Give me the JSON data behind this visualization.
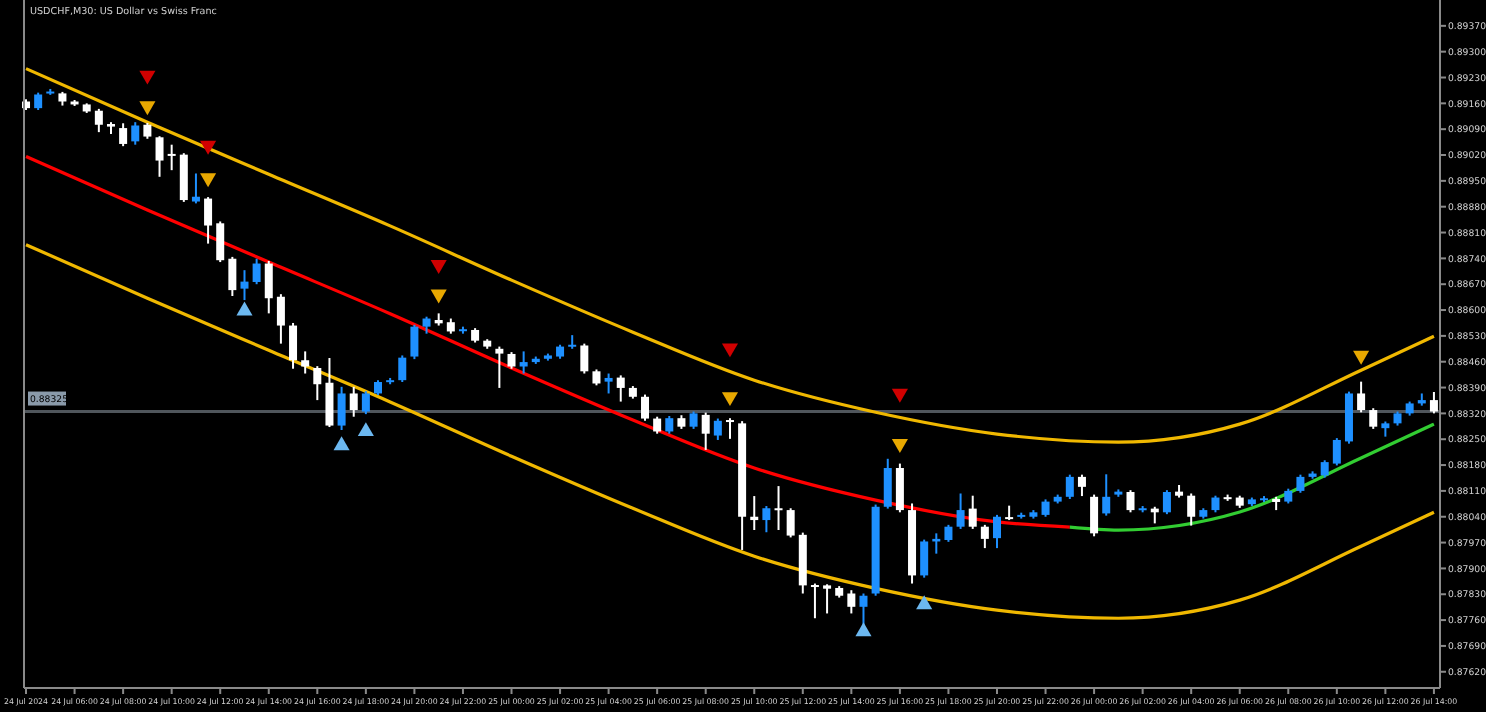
{
  "chart_data": {
    "type": "candlestick",
    "title": "USDCHF,M30:  US Dollar vs Swiss Franc",
    "x": [
      "2024-07-24T04:00",
      "2024-07-24T04:30",
      "2024-07-24T05:00",
      "2024-07-24T05:30",
      "2024-07-24T06:00",
      "2024-07-24T06:30",
      "2024-07-24T07:00",
      "2024-07-24T07:30",
      "2024-07-24T08:00",
      "2024-07-24T08:30",
      "2024-07-24T09:00",
      "2024-07-24T09:30",
      "2024-07-24T10:00",
      "2024-07-24T10:30",
      "2024-07-24T11:00",
      "2024-07-24T11:30",
      "2024-07-24T12:00",
      "2024-07-24T12:30",
      "2024-07-24T13:00",
      "2024-07-24T13:30",
      "2024-07-24T14:00",
      "2024-07-24T14:30",
      "2024-07-24T15:00",
      "2024-07-24T15:30",
      "2024-07-24T16:00",
      "2024-07-24T16:30",
      "2024-07-24T17:00",
      "2024-07-24T17:30",
      "2024-07-24T18:00",
      "2024-07-24T18:30",
      "2024-07-24T19:00",
      "2024-07-24T19:30",
      "2024-07-24T20:00",
      "2024-07-24T20:30",
      "2024-07-24T21:00",
      "2024-07-24T21:30",
      "2024-07-24T22:00",
      "2024-07-24T22:30",
      "2024-07-24T23:00",
      "2024-07-24T23:30",
      "2024-07-25T00:00",
      "2024-07-25T00:30",
      "2024-07-25T01:00",
      "2024-07-25T01:30",
      "2024-07-25T02:00",
      "2024-07-25T02:30",
      "2024-07-25T03:00",
      "2024-07-25T03:30",
      "2024-07-25T04:00",
      "2024-07-25T04:30",
      "2024-07-25T05:00",
      "2024-07-25T05:30",
      "2024-07-25T06:00",
      "2024-07-25T06:30",
      "2024-07-25T07:00",
      "2024-07-25T07:30",
      "2024-07-25T08:00",
      "2024-07-25T08:30",
      "2024-07-25T09:00",
      "2024-07-25T09:30",
      "2024-07-25T10:00",
      "2024-07-25T10:30",
      "2024-07-25T11:00",
      "2024-07-25T11:30",
      "2024-07-25T12:00",
      "2024-07-25T12:30",
      "2024-07-25T13:00",
      "2024-07-25T13:30",
      "2024-07-25T14:00",
      "2024-07-25T14:30",
      "2024-07-25T15:00",
      "2024-07-25T15:30",
      "2024-07-25T16:00",
      "2024-07-25T16:30",
      "2024-07-25T17:00",
      "2024-07-25T17:30",
      "2024-07-25T18:00",
      "2024-07-25T18:30",
      "2024-07-25T19:00",
      "2024-07-25T19:30",
      "2024-07-25T20:00",
      "2024-07-25T20:30",
      "2024-07-25T21:00",
      "2024-07-25T21:30",
      "2024-07-25T22:00",
      "2024-07-25T22:30",
      "2024-07-25T23:00",
      "2024-07-25T23:30",
      "2024-07-26T00:00",
      "2024-07-26T00:30",
      "2024-07-26T01:00",
      "2024-07-26T01:30",
      "2024-07-26T02:00",
      "2024-07-26T02:30",
      "2024-07-26T03:00",
      "2024-07-26T03:30",
      "2024-07-26T04:00",
      "2024-07-26T04:30",
      "2024-07-26T05:00",
      "2024-07-26T05:30",
      "2024-07-26T06:00",
      "2024-07-26T06:30",
      "2024-07-26T07:00",
      "2024-07-26T07:30",
      "2024-07-26T08:00",
      "2024-07-26T08:30",
      "2024-07-26T09:00",
      "2024-07-26T09:30",
      "2024-07-26T10:00",
      "2024-07-26T10:30",
      "2024-07-26T11:00",
      "2024-07-26T11:30",
      "2024-07-26T12:00",
      "2024-07-26T12:30",
      "2024-07-26T13:00",
      "2024-07-26T13:30",
      "2024-07-26T14:00"
    ],
    "ohlc": [
      [
        0.89165,
        0.89171,
        0.89142,
        0.89147
      ],
      [
        0.89147,
        0.89189,
        0.89142,
        0.89184
      ],
      [
        0.89188,
        0.89199,
        0.89183,
        0.89192
      ],
      [
        0.89187,
        0.89191,
        0.89154,
        0.89165
      ],
      [
        0.89165,
        0.89169,
        0.89153,
        0.89157
      ],
      [
        0.89157,
        0.8916,
        0.89134,
        0.89138
      ],
      [
        0.8914,
        0.89145,
        0.89082,
        0.89102
      ],
      [
        0.89104,
        0.89109,
        0.89077,
        0.89097
      ],
      [
        0.89093,
        0.89106,
        0.89044,
        0.8905
      ],
      [
        0.89057,
        0.89109,
        0.89048,
        0.891
      ],
      [
        0.89102,
        0.89107,
        0.89064,
        0.8907
      ],
      [
        0.89068,
        0.89071,
        0.88961,
        0.89005
      ],
      [
        0.89023,
        0.89048,
        0.88979,
        0.89018
      ],
      [
        0.89021,
        0.89025,
        0.88893,
        0.88898
      ],
      [
        0.88894,
        0.8897,
        0.88889,
        0.88907
      ],
      [
        0.88902,
        0.88906,
        0.8878,
        0.88829
      ],
      [
        0.88835,
        0.8884,
        0.8873,
        0.88735
      ],
      [
        0.88739,
        0.88744,
        0.88638,
        0.88654
      ],
      [
        0.88658,
        0.88708,
        0.88627,
        0.88677
      ],
      [
        0.88676,
        0.88739,
        0.8867,
        0.88726
      ],
      [
        0.88726,
        0.88733,
        0.88591,
        0.88632
      ],
      [
        0.88636,
        0.88643,
        0.88509,
        0.88558
      ],
      [
        0.88558,
        0.88565,
        0.88441,
        0.88464
      ],
      [
        0.88464,
        0.88488,
        0.88428,
        0.88447
      ],
      [
        0.88443,
        0.88448,
        0.88356,
        0.88399
      ],
      [
        0.88403,
        0.8847,
        0.88283,
        0.88287
      ],
      [
        0.88287,
        0.88392,
        0.88275,
        0.88374
      ],
      [
        0.88374,
        0.88392,
        0.88311,
        0.88329
      ],
      [
        0.88325,
        0.8838,
        0.88318,
        0.88374
      ],
      [
        0.88374,
        0.8841,
        0.8837,
        0.88405
      ],
      [
        0.88405,
        0.88416,
        0.88399,
        0.8841
      ],
      [
        0.8841,
        0.88477,
        0.88405,
        0.88471
      ],
      [
        0.88474,
        0.8856,
        0.88467,
        0.88555
      ],
      [
        0.88555,
        0.88582,
        0.88536,
        0.88577
      ],
      [
        0.88573,
        0.88591,
        0.88558,
        0.88564
      ],
      [
        0.88567,
        0.88577,
        0.88536,
        0.88542
      ],
      [
        0.88543,
        0.88555,
        0.88536,
        0.88548
      ],
      [
        0.88546,
        0.88551,
        0.88512,
        0.88517
      ],
      [
        0.88517,
        0.88521,
        0.88495,
        0.88501
      ],
      [
        0.88495,
        0.88501,
        0.88389,
        0.88482
      ],
      [
        0.88481,
        0.88486,
        0.88441,
        0.88447
      ],
      [
        0.88447,
        0.88488,
        0.88428,
        0.88459
      ],
      [
        0.88459,
        0.88474,
        0.88454,
        0.88468
      ],
      [
        0.88468,
        0.88482,
        0.88463,
        0.88477
      ],
      [
        0.88474,
        0.88506,
        0.88468,
        0.88501
      ],
      [
        0.88501,
        0.88532,
        0.88495,
        0.88506
      ],
      [
        0.88504,
        0.88509,
        0.88428,
        0.88434
      ],
      [
        0.88434,
        0.88439,
        0.88396,
        0.88401
      ],
      [
        0.88406,
        0.88428,
        0.88374,
        0.88416
      ],
      [
        0.88417,
        0.88423,
        0.88352,
        0.88389
      ],
      [
        0.88389,
        0.88394,
        0.8836,
        0.88365
      ],
      [
        0.88365,
        0.88371,
        0.883,
        0.88306
      ],
      [
        0.88306,
        0.88311,
        0.88265,
        0.88271
      ],
      [
        0.88271,
        0.88313,
        0.88265,
        0.88307
      ],
      [
        0.88307,
        0.88315,
        0.88278,
        0.88284
      ],
      [
        0.88284,
        0.88325,
        0.88278,
        0.8832
      ],
      [
        0.88316,
        0.88322,
        0.88221,
        0.88265
      ],
      [
        0.8826,
        0.88306,
        0.88248,
        0.883
      ],
      [
        0.88302,
        0.88307,
        0.88251,
        0.88297
      ],
      [
        0.88293,
        0.88299,
        0.8795,
        0.8804
      ],
      [
        0.8804,
        0.88096,
        0.88004,
        0.88031
      ],
      [
        0.88031,
        0.88069,
        0.87998,
        0.88063
      ],
      [
        0.88063,
        0.88123,
        0.88004,
        0.88059
      ],
      [
        0.88058,
        0.88063,
        0.87984,
        0.87989
      ],
      [
        0.87991,
        0.87997,
        0.87832,
        0.87854
      ],
      [
        0.87855,
        0.87859,
        0.87765,
        0.87852
      ],
      [
        0.87854,
        0.87857,
        0.87778,
        0.87845
      ],
      [
        0.87847,
        0.87852,
        0.87821,
        0.87826
      ],
      [
        0.87832,
        0.87841,
        0.87778,
        0.87796
      ],
      [
        0.87796,
        0.87832,
        0.87744,
        0.87826
      ],
      [
        0.87832,
        0.88073,
        0.87826,
        0.88067
      ],
      [
        0.88067,
        0.88197,
        0.88062,
        0.88172
      ],
      [
        0.88172,
        0.88184,
        0.88052,
        0.88058
      ],
      [
        0.88058,
        0.88076,
        0.87859,
        0.87881
      ],
      [
        0.87881,
        0.87978,
        0.87875,
        0.87973
      ],
      [
        0.87973,
        0.87995,
        0.8794,
        0.8798
      ],
      [
        0.87977,
        0.88018,
        0.87972,
        0.88013
      ],
      [
        0.88013,
        0.88103,
        0.88007,
        0.88058
      ],
      [
        0.88062,
        0.88097,
        0.88007,
        0.88013
      ],
      [
        0.88013,
        0.88018,
        0.87955,
        0.8798
      ],
      [
        0.87982,
        0.88045,
        0.87955,
        0.8804
      ],
      [
        0.88039,
        0.8807,
        0.88031,
        0.88036
      ],
      [
        0.8804,
        0.88051,
        0.88035,
        0.88045
      ],
      [
        0.8804,
        0.88058,
        0.88035,
        0.88052
      ],
      [
        0.88045,
        0.88087,
        0.8804,
        0.88081
      ],
      [
        0.88081,
        0.881,
        0.88076,
        0.88094
      ],
      [
        0.88094,
        0.88154,
        0.88088,
        0.88148
      ],
      [
        0.88148,
        0.88154,
        0.88096,
        0.88121
      ],
      [
        0.88094,
        0.881,
        0.87987,
        0.87995
      ],
      [
        0.88049,
        0.88155,
        0.88043,
        0.88094
      ],
      [
        0.881,
        0.88114,
        0.88094,
        0.88108
      ],
      [
        0.88107,
        0.88112,
        0.88052,
        0.88058
      ],
      [
        0.88058,
        0.88069,
        0.88052,
        0.88063
      ],
      [
        0.88062,
        0.88067,
        0.88022,
        0.88052
      ],
      [
        0.88052,
        0.88112,
        0.88047,
        0.88107
      ],
      [
        0.88108,
        0.88126,
        0.88092,
        0.88097
      ],
      [
        0.88097,
        0.88103,
        0.88016,
        0.8804
      ],
      [
        0.8804,
        0.88063,
        0.88035,
        0.88058
      ],
      [
        0.88058,
        0.88097,
        0.88052,
        0.88092
      ],
      [
        0.88093,
        0.881,
        0.88083,
        0.8809
      ],
      [
        0.88092,
        0.88097,
        0.88064,
        0.8807
      ],
      [
        0.88074,
        0.88092,
        0.88069,
        0.88087
      ],
      [
        0.88085,
        0.88096,
        0.8808,
        0.8809
      ],
      [
        0.88088,
        0.88094,
        0.88058,
        0.8808
      ],
      [
        0.88081,
        0.88116,
        0.88076,
        0.8811
      ],
      [
        0.8811,
        0.88154,
        0.88105,
        0.88148
      ],
      [
        0.88148,
        0.88163,
        0.88143,
        0.88157
      ],
      [
        0.88152,
        0.88193,
        0.88146,
        0.88188
      ],
      [
        0.88184,
        0.88253,
        0.88179,
        0.88248
      ],
      [
        0.88244,
        0.88379,
        0.88238,
        0.88374
      ],
      [
        0.88374,
        0.88406,
        0.88323,
        0.88329
      ],
      [
        0.88329,
        0.88334,
        0.88278,
        0.88284
      ],
      [
        0.8828,
        0.88298,
        0.88257,
        0.88293
      ],
      [
        0.88293,
        0.88325,
        0.88287,
        0.8832
      ],
      [
        0.8832,
        0.88352,
        0.88314,
        0.88347
      ],
      [
        0.88347,
        0.88374,
        0.88341,
        0.88356
      ],
      [
        0.88356,
        0.88378,
        0.8832,
        0.88325
      ]
    ],
    "series": [
      {
        "type": "line",
        "color": "#f0b800",
        "x": [
          "2024-07-24T04:00",
          "2024-07-24T09:00",
          "2024-07-24T14:00",
          "2024-07-24T19:00",
          "2024-07-25T00:00",
          "2024-07-25T05:00",
          "2024-07-25T10:00",
          "2024-07-25T15:00",
          "2024-07-25T20:00",
          "2024-07-26T01:00",
          "2024-07-26T06:00",
          "2024-07-26T11:00",
          "2024-07-26T14:00"
        ],
        "values": [
          0.89254,
          0.89109,
          0.88968,
          0.88828,
          0.88681,
          0.8854,
          0.8841,
          0.88323,
          0.88264,
          0.88242,
          0.88291,
          0.88437,
          0.88529
        ]
      },
      {
        "type": "line",
        "color": "#ff0000",
        "x": [
          "2024-07-24T04:00",
          "2024-07-24T09:00",
          "2024-07-24T14:00",
          "2024-07-24T19:00",
          "2024-07-25T00:00",
          "2024-07-25T05:00",
          "2024-07-25T10:00",
          "2024-07-25T15:00",
          "2024-07-25T20:00",
          "2024-07-25T23:00"
        ],
        "values": [
          0.89016,
          0.88871,
          0.8873,
          0.8859,
          0.88443,
          0.88302,
          0.88172,
          0.88085,
          0.88026,
          0.88012
        ]
      },
      {
        "type": "line",
        "color": "#32cd32",
        "x": [
          "2024-07-25T23:00",
          "2024-07-26T01:00",
          "2024-07-26T06:00",
          "2024-07-26T11:00",
          "2024-07-26T14:00"
        ],
        "values": [
          0.88012,
          0.88004,
          0.88053,
          0.88199,
          0.88291
        ]
      },
      {
        "type": "line",
        "color": "#f0b800",
        "x": [
          "2024-07-24T04:00",
          "2024-07-24T09:00",
          "2024-07-24T14:00",
          "2024-07-24T19:00",
          "2024-07-25T00:00",
          "2024-07-25T05:00",
          "2024-07-25T10:00",
          "2024-07-25T15:00",
          "2024-07-25T20:00",
          "2024-07-26T01:00",
          "2024-07-26T06:00",
          "2024-07-26T11:00",
          "2024-07-26T14:00"
        ],
        "values": [
          0.88777,
          0.88632,
          0.88491,
          0.88351,
          0.88204,
          0.88063,
          0.87933,
          0.87846,
          0.87787,
          0.87765,
          0.87814,
          0.8796,
          0.88052
        ]
      },
      {
        "type": "scatter",
        "marker": "triangle",
        "color": "#d00000",
        "x": [
          "2024-07-24T09:00",
          "2024-07-24T11:30",
          "2024-07-24T21:00",
          "2024-07-25T09:00",
          "2024-07-25T16:00"
        ],
        "values": [
          0.89236,
          0.89046,
          0.88723,
          0.88497,
          0.88374
        ]
      },
      {
        "type": "scatter",
        "marker": "triangle",
        "color": "#e8a800",
        "x": [
          "2024-07-24T09:00",
          "2024-07-24T11:30",
          "2024-07-24T21:00",
          "2024-07-25T09:00",
          "2024-07-25T16:00",
          "2024-07-26T11:00"
        ],
        "values": [
          0.89153,
          0.88958,
          0.88643,
          0.88365,
          0.88238,
          0.88477
        ]
      },
      {
        "type": "scatter",
        "marker": "triangle",
        "color": "#6cb8f0",
        "x": [
          "2024-07-24T13:00",
          "2024-07-24T17:00",
          "2024-07-24T18:00",
          "2024-07-25T14:30",
          "2024-07-25T17:00"
        ],
        "values": [
          0.88598,
          0.88233,
          0.88271,
          0.87729,
          0.87802
        ]
      }
    ],
    "ref_lines": [
      {
        "axis": "y",
        "value": 0.88325,
        "label": "0.88325",
        "color": "#50565c"
      }
    ],
    "xlim": [
      "2024-07-24T03:55",
      "2024-07-26T14:15"
    ],
    "xticks": [
      {
        "value": "2024-07-24T04:00",
        "label": "24 Jul 2024"
      },
      {
        "value": "2024-07-24T06:00",
        "label": "24 Jul 06:00"
      },
      {
        "value": "2024-07-24T08:00",
        "label": "24 Jul 08:00"
      },
      {
        "value": "2024-07-24T10:00",
        "label": "24 Jul 10:00"
      },
      {
        "value": "2024-07-24T12:00",
        "label": "24 Jul 12:00"
      },
      {
        "value": "2024-07-24T14:00",
        "label": "24 Jul 14:00"
      },
      {
        "value": "2024-07-24T16:00",
        "label": "24 Jul 16:00"
      },
      {
        "value": "2024-07-24T18:00",
        "label": "24 Jul 18:00"
      },
      {
        "value": "2024-07-24T20:00",
        "label": "24 Jul 20:00"
      },
      {
        "value": "2024-07-24T22:00",
        "label": "24 Jul 22:00"
      },
      {
        "value": "2024-07-25T00:00",
        "label": "25 Jul 00:00"
      },
      {
        "value": "2024-07-25T02:00",
        "label": "25 Jul 02:00"
      },
      {
        "value": "2024-07-25T04:00",
        "label": "25 Jul 04:00"
      },
      {
        "value": "2024-07-25T06:00",
        "label": "25 Jul 06:00"
      },
      {
        "value": "2024-07-25T08:00",
        "label": "25 Jul 08:00"
      },
      {
        "value": "2024-07-25T10:00",
        "label": "25 Jul 10:00"
      },
      {
        "value": "2024-07-25T12:00",
        "label": "25 Jul 12:00"
      },
      {
        "value": "2024-07-25T14:00",
        "label": "25 Jul 14:00"
      },
      {
        "value": "2024-07-25T16:00",
        "label": "25 Jul 16:00"
      },
      {
        "value": "2024-07-25T18:00",
        "label": "25 Jul 18:00"
      },
      {
        "value": "2024-07-25T20:00",
        "label": "25 Jul 20:00"
      },
      {
        "value": "2024-07-25T22:00",
        "label": "25 Jul 22:00"
      },
      {
        "value": "2024-07-26T00:00",
        "label": "26 Jul 00:00"
      },
      {
        "value": "2024-07-26T02:00",
        "label": "26 Jul 02:00"
      },
      {
        "value": "2024-07-26T04:00",
        "label": "26 Jul 04:00"
      },
      {
        "value": "2024-07-26T06:00",
        "label": "26 Jul 06:00"
      },
      {
        "value": "2024-07-26T08:00",
        "label": "26 Jul 08:00"
      },
      {
        "value": "2024-07-26T10:00",
        "label": "26 Jul 10:00"
      },
      {
        "value": "2024-07-26T12:00",
        "label": "26 Jul 12:00"
      },
      {
        "value": "2024-07-26T14:00",
        "label": "26 Jul 14:00"
      }
    ],
    "ylim": [
      0.87576,
      0.8944
    ],
    "yticks": [
      {
        "value": 0.8937,
        "label": "0.89370"
      },
      {
        "value": 0.893,
        "label": "0.89300"
      },
      {
        "value": 0.8923,
        "label": "0.89230"
      },
      {
        "value": 0.8916,
        "label": "0.89160"
      },
      {
        "value": 0.8909,
        "label": "0.89090"
      },
      {
        "value": 0.8902,
        "label": "0.89020"
      },
      {
        "value": 0.8895,
        "label": "0.88950"
      },
      {
        "value": 0.8888,
        "label": "0.88880"
      },
      {
        "value": 0.8881,
        "label": "0.88810"
      },
      {
        "value": 0.8874,
        "label": "0.88740"
      },
      {
        "value": 0.8867,
        "label": "0.88670"
      },
      {
        "value": 0.886,
        "label": "0.88600"
      },
      {
        "value": 0.8853,
        "label": "0.88530"
      },
      {
        "value": 0.8846,
        "label": "0.88460"
      },
      {
        "value": 0.8839,
        "label": "0.88390"
      },
      {
        "value": 0.8832,
        "label": "0.88320"
      },
      {
        "value": 0.8825,
        "label": "0.88250"
      },
      {
        "value": 0.8818,
        "label": "0.88180"
      },
      {
        "value": 0.8811,
        "label": "0.88110"
      },
      {
        "value": 0.8804,
        "label": "0.88040"
      },
      {
        "value": 0.8797,
        "label": "0.87970"
      },
      {
        "value": 0.879,
        "label": "0.87900"
      },
      {
        "value": 0.8783,
        "label": "0.87830"
      },
      {
        "value": 0.8776,
        "label": "0.87760"
      },
      {
        "value": 0.8769,
        "label": "0.87690"
      },
      {
        "value": 0.8762,
        "label": "0.87620"
      }
    ]
  }
}
